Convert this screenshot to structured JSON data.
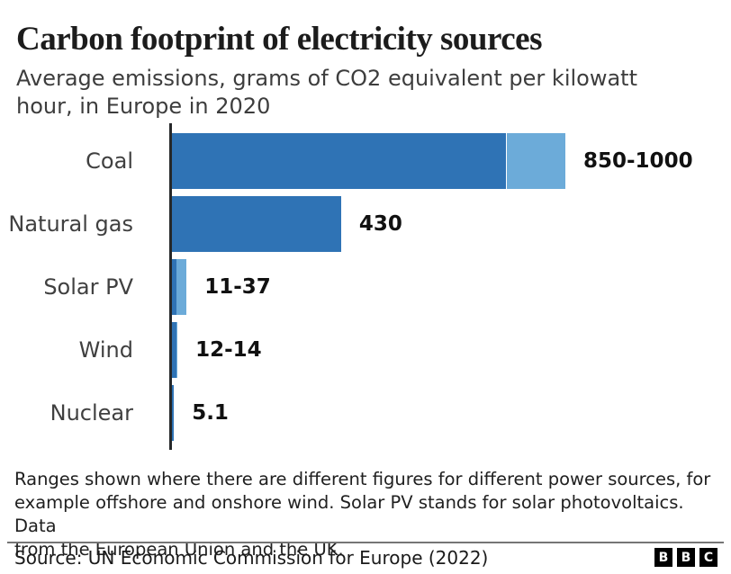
{
  "title": "Carbon footprint of electricity sources",
  "subtitle": {
    "lines": [
      "Average emissions, grams of CO2 equivalent per kilowatt",
      "hour, in Europe in 2020"
    ]
  },
  "chart_data": {
    "type": "bar",
    "orientation": "horizontal",
    "title": "Carbon footprint of electricity sources",
    "subtitle": "Average emissions, grams of CO2 equivalent per kilowatt hour, in Europe in 2020",
    "xlabel": "",
    "ylabel": "",
    "xlim": [
      0,
      1000
    ],
    "grid": false,
    "legend": false,
    "categories": [
      "Coal",
      "Natural gas",
      "Solar PV",
      "Wind",
      "Nuclear"
    ],
    "bars": [
      {
        "category": "Coal",
        "min": 850,
        "max": 1000,
        "label": "850-1000"
      },
      {
        "category": "Natural gas",
        "min": 430,
        "max": 430,
        "label": "430"
      },
      {
        "category": "Solar PV",
        "min": 11,
        "max": 37,
        "label": "11-37"
      },
      {
        "category": "Wind",
        "min": 12,
        "max": 14,
        "label": "12-14"
      },
      {
        "category": "Nuclear",
        "min": 5.1,
        "max": 5.1,
        "label": "5.1"
      }
    ],
    "colors": {
      "bar_primary": "#2f73b5",
      "bar_range_extension": "#6cabd9",
      "axis": "#26282a"
    }
  },
  "footnote": {
    "lines": [
      "Ranges shown where there are different figures for different power sources, for",
      "example offshore and onshore wind. Solar PV stands for solar photovoltaics. Data",
      "from the European Union and the UK."
    ]
  },
  "source": "Source: UN Economic Commission for Europe (2022)",
  "logo": {
    "letters": [
      "B",
      "B",
      "C"
    ]
  }
}
